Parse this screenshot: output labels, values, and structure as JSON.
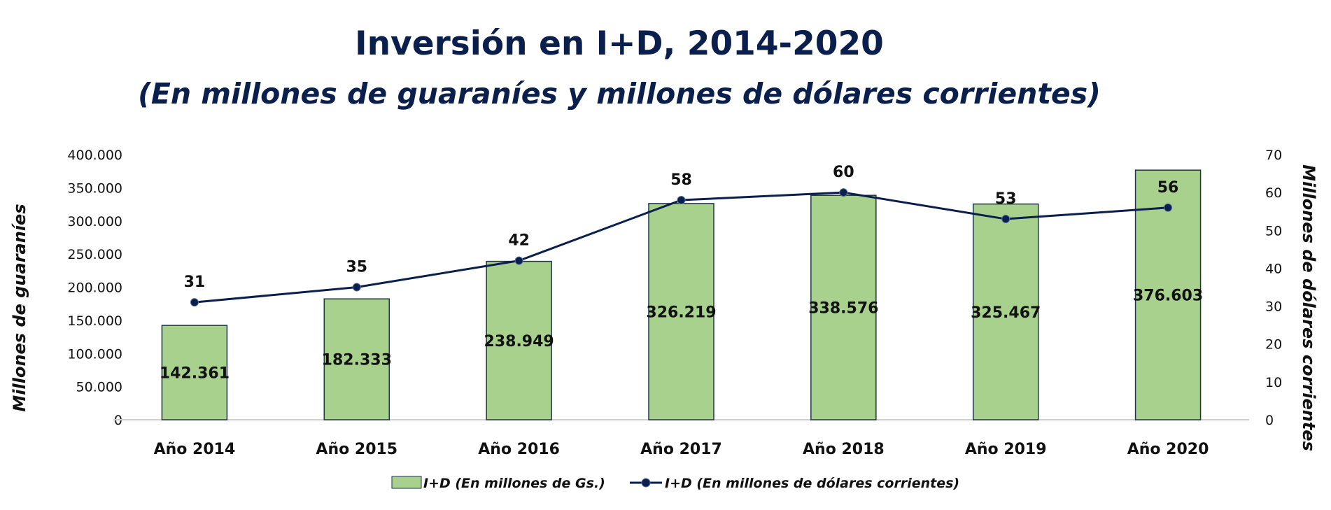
{
  "chart_data": {
    "type": "bar",
    "title": "Inversión en I+D, 2014-2020",
    "subtitle": "(En millones de guaraníes y millones de dólares corrientes)",
    "categories": [
      "Año 2014",
      "Año 2015",
      "Año 2016",
      "Año 2017",
      "Año 2018",
      "Año 2019",
      "Año 2020"
    ],
    "ylabel": "Millones de guaraníes",
    "y2label": "Millones de dólares corrientes",
    "ylim": [
      0,
      400000
    ],
    "y2lim": [
      0,
      70
    ],
    "yticks": [
      "0",
      "50.000",
      "100.000",
      "150.000",
      "200.000",
      "250.000",
      "300.000",
      "350.000",
      "400.000"
    ],
    "y2ticks": [
      "0",
      "10",
      "20",
      "30",
      "40",
      "50",
      "60",
      "70"
    ],
    "series": [
      {
        "name": "I+D (En millones de Gs.)",
        "type": "bar",
        "axis": "left",
        "values": [
          142361,
          182333,
          238949,
          326219,
          338576,
          325467,
          376603
        ],
        "labels": [
          "142.361",
          "182.333",
          "238.949",
          "326.219",
          "338.576",
          "325.467",
          "376.603"
        ]
      },
      {
        "name": "I+D (En millones de dólares corrientes)",
        "type": "line",
        "axis": "right",
        "values": [
          31,
          35,
          42,
          58,
          60,
          53,
          56
        ],
        "labels": [
          "31",
          "35",
          "42",
          "58",
          "60",
          "53",
          "56"
        ]
      }
    ],
    "grid": false,
    "legend": "bottom"
  },
  "colors": {
    "bar_fill": "#a9d18e",
    "bar_stroke": "#1f3250",
    "line": "#0b1f4d",
    "title": "#0b1f4d",
    "axis_line": "#d0d0d0"
  }
}
